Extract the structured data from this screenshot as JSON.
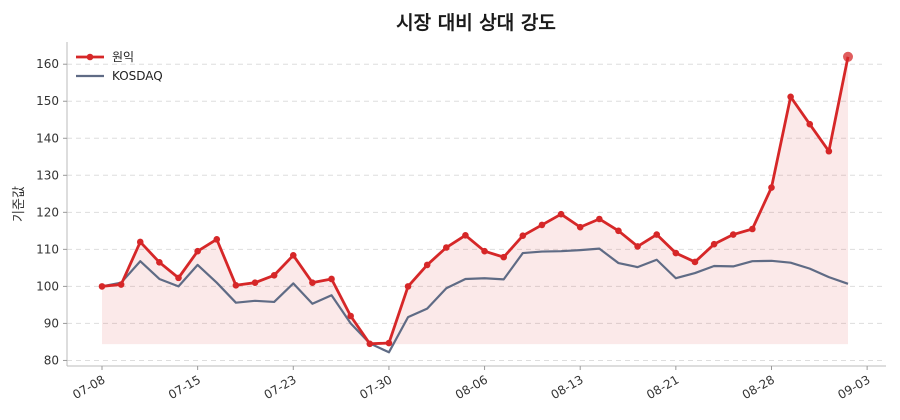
{
  "chart_data": {
    "type": "line",
    "title": "시장 대비 상대 강도",
    "xlabel": "",
    "ylabel": "기준값",
    "ylim": [
      78.5,
      166
    ],
    "yticks": [
      80,
      90,
      100,
      110,
      120,
      130,
      140,
      150,
      160
    ],
    "xtick_labels": [
      "07-08",
      "07-15",
      "07-23",
      "07-30",
      "08-06",
      "08-13",
      "08-21",
      "08-28",
      "09-03"
    ],
    "xtick_positions": [
      0,
      5,
      10,
      15,
      20,
      25,
      30,
      35,
      40
    ],
    "fill_baseline": 84.4,
    "grid": "horizontal dashed",
    "legend_position": "top-left",
    "series": [
      {
        "name": "원익",
        "color": "#d62728",
        "marker": "circle",
        "values": [
          100.0,
          100.5,
          112.0,
          106.5,
          102.3,
          109.5,
          112.7,
          100.3,
          101.0,
          103.0,
          108.4,
          101.0,
          102.0,
          92.0,
          84.5,
          84.7,
          100.0,
          105.8,
          110.5,
          113.8,
          109.5,
          107.9,
          113.7,
          116.6,
          119.5,
          116.0,
          118.2,
          115.0,
          110.8,
          114.0,
          109.0,
          106.6,
          111.4,
          114.0,
          115.5,
          126.7,
          151.2,
          143.8,
          136.5,
          162.0
        ]
      },
      {
        "name": "KOSDAQ",
        "color": "#5f6b85",
        "marker": "none",
        "values": [
          100.0,
          101.0,
          106.8,
          102.0,
          100.0,
          105.8,
          101.0,
          95.6,
          96.1,
          95.8,
          100.8,
          95.3,
          97.6,
          90.0,
          84.6,
          82.2,
          91.7,
          94.0,
          99.5,
          102.0,
          102.2,
          101.9,
          109.0,
          109.4,
          109.5,
          109.8,
          110.2,
          106.3,
          105.2,
          107.2,
          102.2,
          103.6,
          105.5,
          105.4,
          106.8,
          106.9,
          106.4,
          104.8,
          102.5,
          100.7
        ]
      }
    ]
  }
}
